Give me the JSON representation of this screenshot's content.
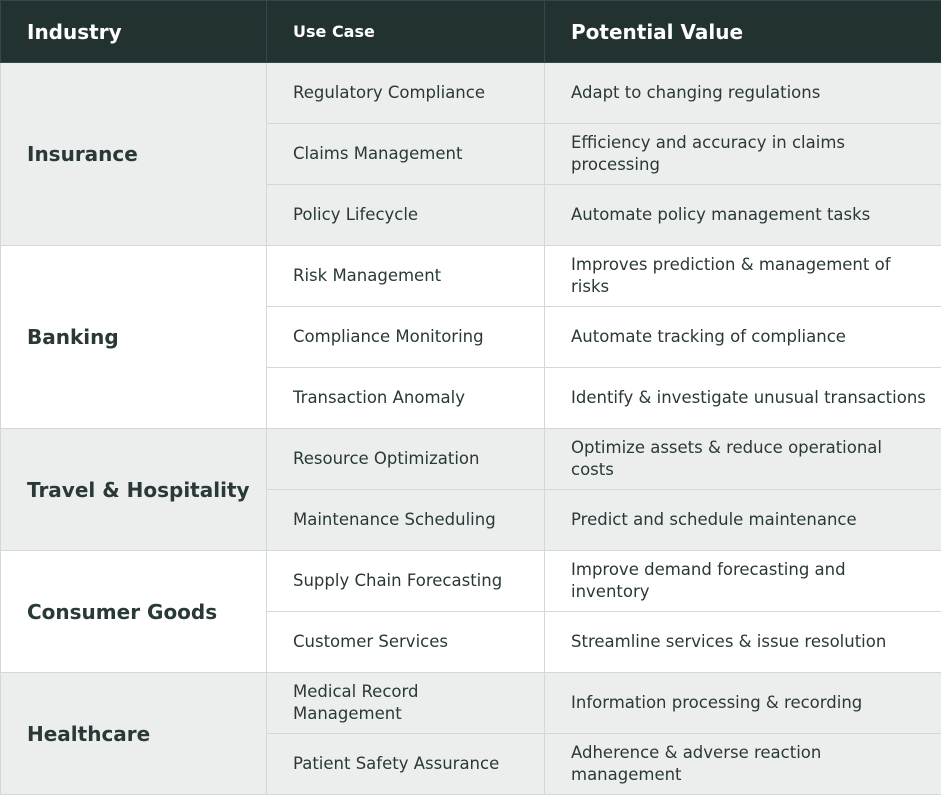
{
  "table": {
    "header": [
      "Industry",
      "Use Case",
      "Potential Value"
    ],
    "groups": [
      {
        "industry": "Insurance",
        "rows": [
          [
            "Regulatory Compliance",
            "Adapt to changing regulations"
          ],
          [
            "Claims Management",
            "Efficiency and accuracy in claims processing"
          ],
          [
            "Policy Lifecycle",
            "Automate policy management tasks"
          ]
        ]
      },
      {
        "industry": "Banking",
        "rows": [
          [
            "Risk Management",
            "Improves prediction & management of risks"
          ],
          [
            "Compliance Monitoring",
            "Automate tracking of compliance"
          ],
          [
            "Transaction Anomaly",
            "Identify & investigate unusual transactions"
          ]
        ]
      },
      {
        "industry": "Travel & Hospitality",
        "rows": [
          [
            "Resource Optimization",
            "Optimize assets & reduce operational costs"
          ],
          [
            "Maintenance Scheduling",
            "Predict and schedule maintenance"
          ]
        ]
      },
      {
        "industry": "Consumer Goods",
        "rows": [
          [
            "Supply Chain Forecasting",
            "Improve demand forecasting and inventory"
          ],
          [
            "Customer Services",
            "Streamline services & issue resolution"
          ]
        ]
      },
      {
        "industry": "Healthcare",
        "rows": [
          [
            "Medical Record Management",
            "Information processing & recording"
          ],
          [
            "Patient Safety Assurance",
            "Adherence & adverse reaction management"
          ]
        ]
      }
    ]
  }
}
